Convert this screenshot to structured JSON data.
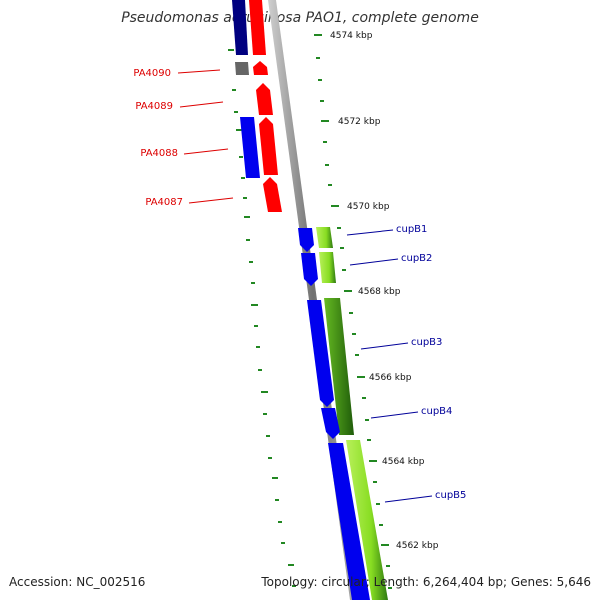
{
  "title": "Pseudomonas aeruginosa PAO1, complete genome",
  "footer": {
    "accession": "Accession: NC_002516",
    "summary": "Topology: circular; Length: 6,264,404 bp; Genes: 5,646"
  },
  "ticks": [
    "4574 kbp",
    "4572 kbp",
    "4570 kbp",
    "4568 kbp",
    "4566 kbp",
    "4564 kbp",
    "4562 kbp"
  ],
  "genes_left": [
    "PA4090",
    "PA4089",
    "PA4088",
    "PA4087"
  ],
  "genes_right": [
    "cupB1",
    "cupB2",
    "cupB3",
    "cupB4",
    "cupB5"
  ],
  "colors": {
    "left_label": "#dd0000",
    "right_label": "#000099",
    "forward": "#ff0000",
    "reverse": "#0000ee",
    "gc": "#88dd22",
    "backbone": "#808080",
    "tick": "#228822"
  }
}
